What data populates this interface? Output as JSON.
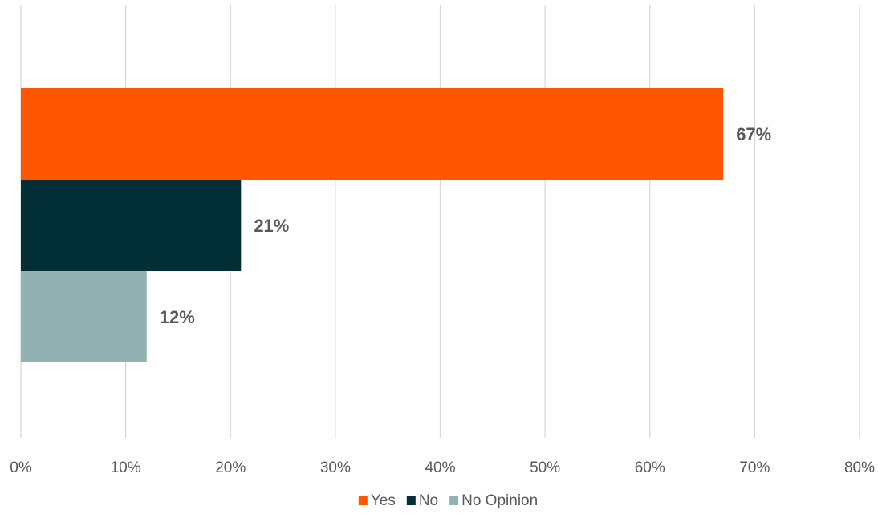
{
  "chart_data": {
    "type": "bar",
    "orientation": "horizontal",
    "title": "",
    "xlabel": "",
    "ylabel": "",
    "xlim": [
      0,
      0.8
    ],
    "x_ticks": [
      0,
      0.1,
      0.2,
      0.3,
      0.4,
      0.5,
      0.6,
      0.7,
      0.8
    ],
    "x_tick_labels": [
      "0%",
      "10%",
      "20%",
      "30%",
      "40%",
      "50%",
      "60%",
      "70%",
      "80%"
    ],
    "grid": "vertical",
    "legend_position": "bottom-center",
    "series": [
      {
        "name": "Yes",
        "value": 0.67,
        "label": "67%",
        "color": "#ff5600"
      },
      {
        "name": "No",
        "value": 0.21,
        "label": "21%",
        "color": "#022e35"
      },
      {
        "name": "No Opinion",
        "value": 0.12,
        "label": "12%",
        "color": "#92b2b1"
      }
    ]
  }
}
